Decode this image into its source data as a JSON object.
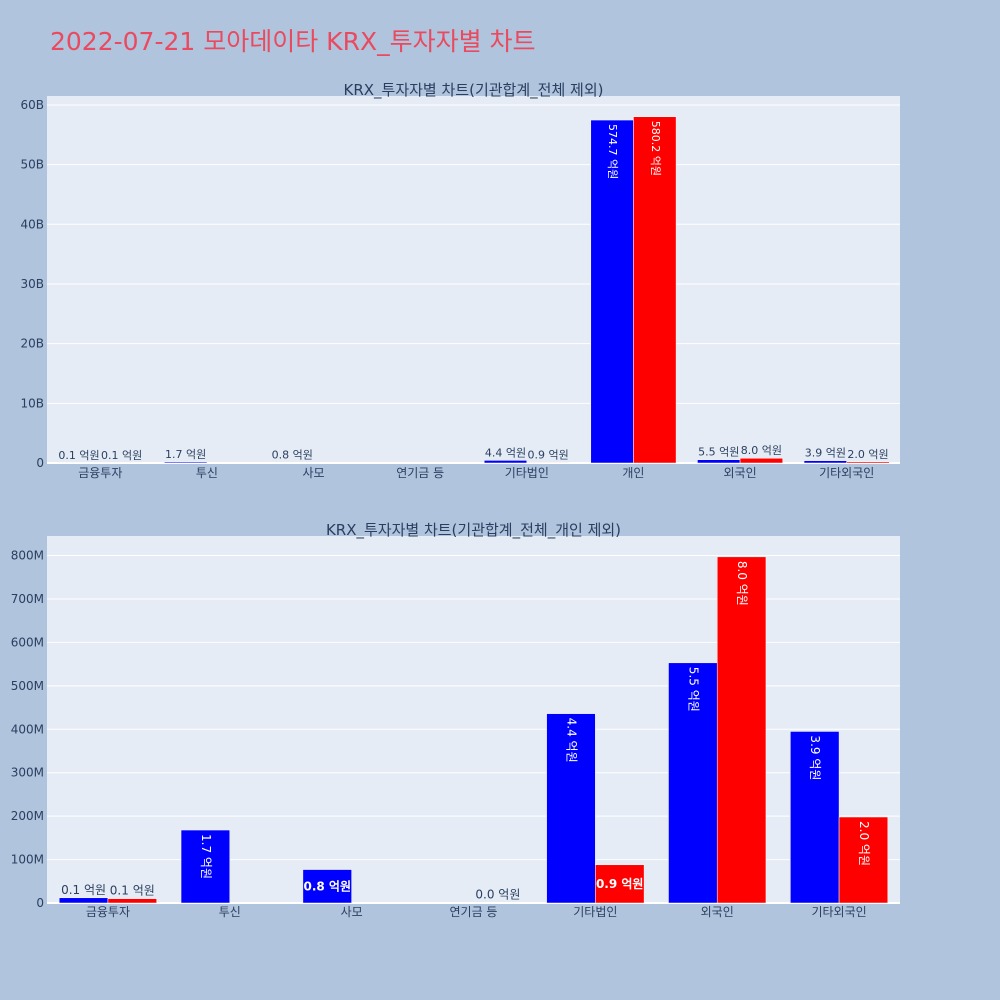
{
  "page": {
    "title": "2022-07-21 모아데이타 KRX_투자자별 차트"
  },
  "colors": {
    "background": "#b0c4de",
    "plot_bg": "#e5ecf6",
    "title": "#ea4a5f",
    "series_a": "#0000ff",
    "series_b": "#ff0000",
    "text": "#2a3f5f"
  },
  "chart_data": [
    {
      "type": "bar",
      "title": "KRX_투자자별 차트(기관합계_전체 제외)",
      "categories": [
        "금융투자",
        "투신",
        "사모",
        "연기금 등",
        "기타법인",
        "개인",
        "외국인",
        "기타외국인"
      ],
      "series": [
        {
          "values": [
            10000000,
            170000000,
            80000000,
            0,
            440000000,
            57470000000,
            550000000,
            390000000
          ],
          "labels": [
            "0.1 억원",
            "1.7 억원",
            "0.8 억원",
            "",
            "4.4 억원",
            "574.7 억원",
            "5.5 억원",
            "3.9 억원"
          ]
        },
        {
          "values": [
            10000000,
            0,
            0,
            0,
            90000000,
            58020000000,
            800000000,
            200000000
          ],
          "labels": [
            "0.1 억원",
            "",
            "",
            "",
            "0.9 억원",
            "580.2 억원",
            "8.0 억원",
            "2.0 억원"
          ]
        }
      ],
      "ylim": [
        0,
        61500000000
      ],
      "yticks": [
        0,
        10000000000,
        20000000000,
        30000000000,
        40000000000,
        50000000000,
        60000000000
      ],
      "ytick_labels": [
        "0",
        "10B",
        "20B",
        "30B",
        "40B",
        "50B",
        "60B"
      ],
      "grid": true
    },
    {
      "type": "bar",
      "title": "KRX_투자자별 차트(기관합계_전체_개인 제외)",
      "categories": [
        "금융투자",
        "투신",
        "사모",
        "연기금 등",
        "기타법인",
        "외국인",
        "기타외국인"
      ],
      "series": [
        {
          "values": [
            12000000,
            168000000,
            77000000,
            0,
            436000000,
            553000000,
            395000000
          ],
          "labels": [
            "0.1 억원",
            "1.7 억원",
            "0.8 억원",
            "",
            "4.4 억원",
            "5.5 억원",
            "3.9 억원"
          ]
        },
        {
          "values": [
            10000000,
            0,
            0,
            1000000,
            88000000,
            797000000,
            198000000
          ],
          "labels": [
            "0.1 억원",
            "",
            "",
            "0.0 억원",
            "0.9 억원",
            "8.0 억원",
            "2.0 억원"
          ]
        }
      ],
      "ylim": [
        0,
        845000000
      ],
      "yticks": [
        0,
        100000000,
        200000000,
        300000000,
        400000000,
        500000000,
        600000000,
        700000000,
        800000000
      ],
      "ytick_labels": [
        "0",
        "100M",
        "200M",
        "300M",
        "400M",
        "500M",
        "600M",
        "700M",
        "800M"
      ],
      "grid": true
    }
  ]
}
